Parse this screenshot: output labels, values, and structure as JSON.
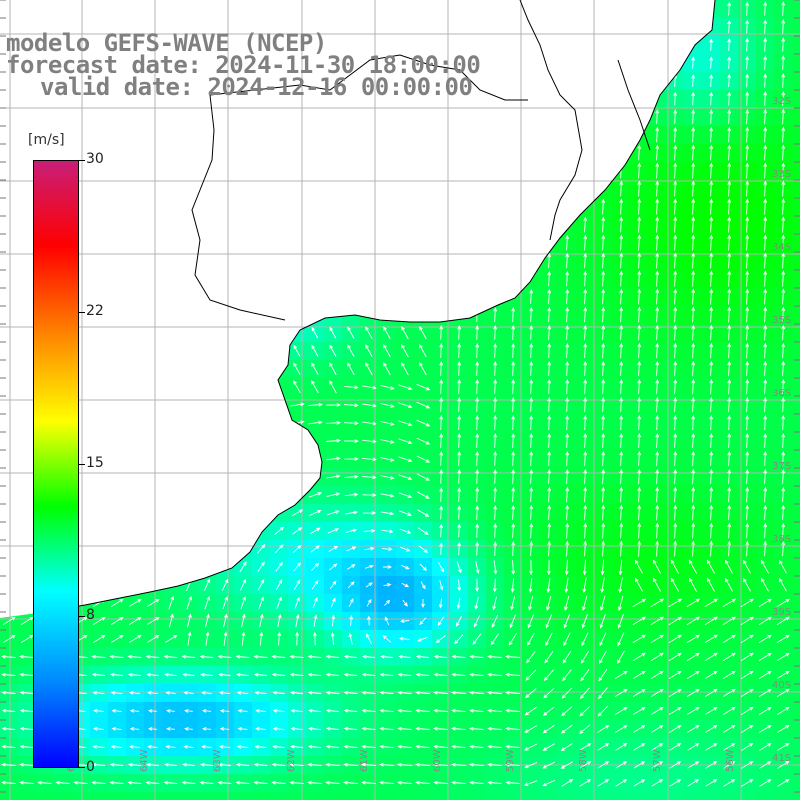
{
  "header": {
    "line1": "modelo GEFS-WAVE (NCEP)",
    "line2": "forecast date: 2024-11-30 18:00:00",
    "line3": "valid date: 2024-12-16 00:00:00"
  },
  "colorbar": {
    "units": "[m/s]",
    "min": 0,
    "max": 30,
    "ticks": [
      {
        "label": "30",
        "value": 30
      },
      {
        "label": "22",
        "value": 22
      },
      {
        "label": "15",
        "value": 15
      },
      {
        "label": "8",
        "value": 8
      },
      {
        "label": "0",
        "value": 0
      }
    ],
    "colors": [
      "#0000ff",
      "#0088ff",
      "#00ffff",
      "#00ff00",
      "#ffff00",
      "#ff8800",
      "#ff0000",
      "#c81e78"
    ]
  },
  "map": {
    "land_color": "#ffffff",
    "grid": true,
    "grid_color": "#b4b4b4",
    "lat_labels": [
      "32S",
      "33S",
      "34S",
      "35S",
      "36S",
      "37S",
      "38S",
      "39S",
      "40S",
      "41S"
    ],
    "lon_labels": [
      "65W",
      "64W",
      "63W",
      "62W",
      "61W",
      "60W",
      "59W",
      "58W",
      "57W",
      "56W"
    ]
  }
}
